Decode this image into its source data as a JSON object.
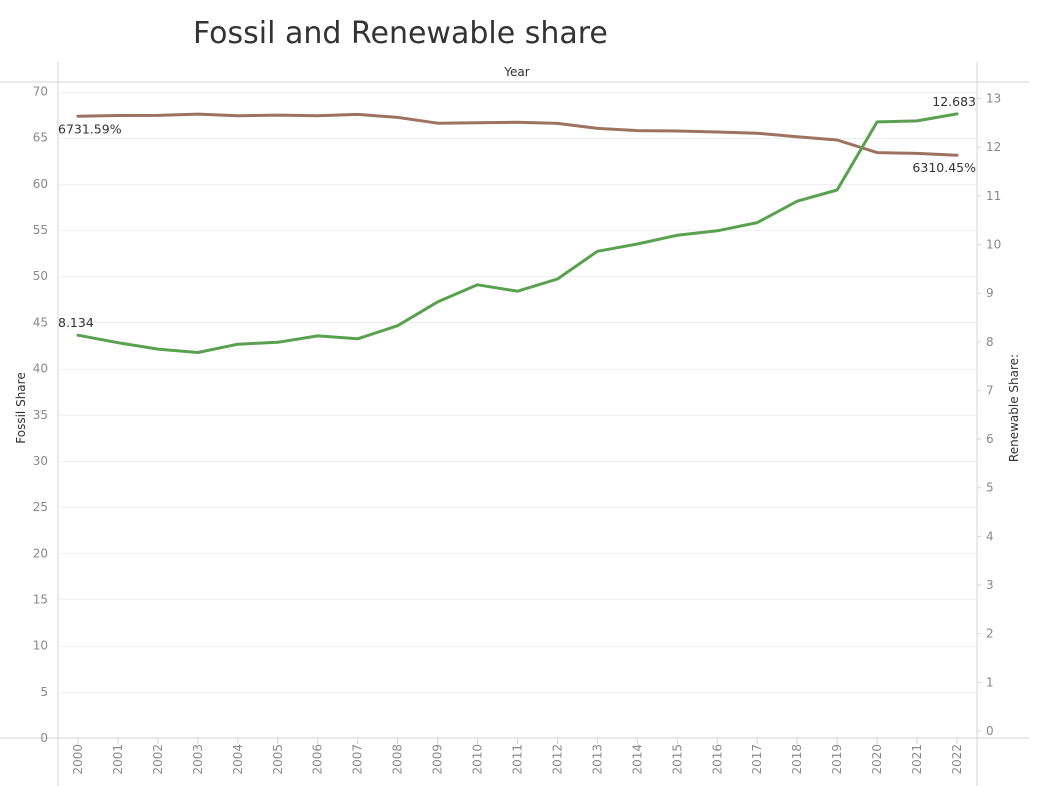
{
  "chart_data": {
    "type": "line",
    "title": "Fossil and Renewable share",
    "column_header": "Year",
    "x": [
      "2000",
      "2001",
      "2002",
      "2003",
      "2004",
      "2005",
      "2006",
      "2007",
      "2008",
      "2009",
      "2010",
      "2011",
      "2012",
      "2013",
      "2014",
      "2015",
      "2016",
      "2017",
      "2018",
      "2019",
      "2020",
      "2021",
      "2022"
    ],
    "y_left": {
      "label": "Fossil Share",
      "range": [
        0,
        70
      ],
      "ticks": [
        0,
        5,
        10,
        15,
        20,
        25,
        30,
        35,
        40,
        45,
        50,
        55,
        60,
        65,
        70
      ]
    },
    "y_right": {
      "label": "Renewable Share:",
      "range": [
        0,
        13
      ],
      "ticks": [
        0,
        1,
        2,
        3,
        4,
        5,
        6,
        7,
        8,
        9,
        10,
        11,
        12,
        13
      ]
    },
    "grid": true,
    "series": [
      {
        "axis": "left",
        "color": "#9e7260",
        "values": [
          67.32,
          67.4,
          67.41,
          67.55,
          67.38,
          67.45,
          67.38,
          67.52,
          67.2,
          66.57,
          66.62,
          66.66,
          66.55,
          66.0,
          65.77,
          65.72,
          65.62,
          65.48,
          65.1,
          64.75,
          63.38,
          63.3,
          63.1
        ],
        "start_label": "6731.59%",
        "end_label": "6310.45%"
      },
      {
        "axis": "right",
        "color": "#59a14f",
        "values": [
          8.134,
          7.98,
          7.85,
          7.78,
          7.95,
          7.99,
          8.12,
          8.06,
          8.33,
          8.82,
          9.17,
          9.04,
          9.29,
          9.86,
          10.01,
          10.19,
          10.28,
          10.45,
          10.89,
          11.12,
          12.52,
          12.54,
          12.683
        ],
        "start_label": "8.134",
        "end_label": "12.683"
      }
    ]
  }
}
